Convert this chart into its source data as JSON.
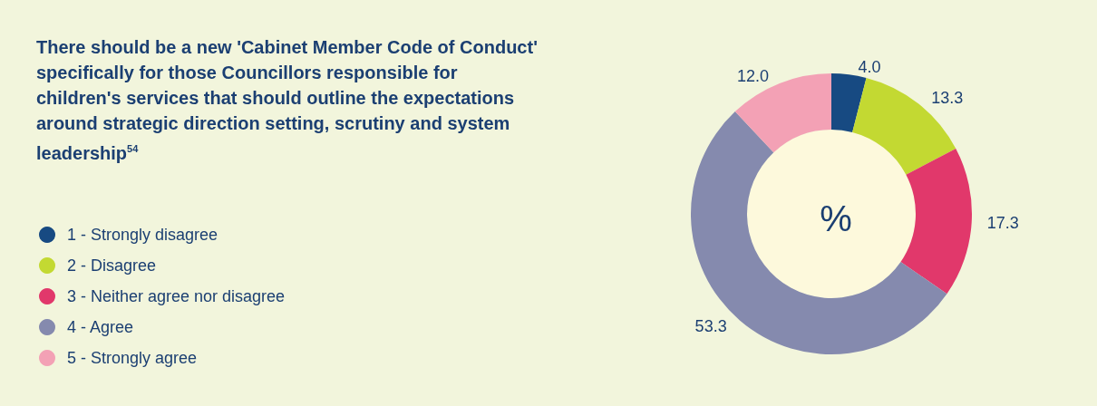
{
  "chart_data": {
    "type": "donut",
    "title": "There should be a new 'Cabinet Member Code of Conduct' specifically for those Councillors responsible for children's services that should outline the expectations around strategic direction setting, scrutiny and system leadership$^{54}$",
    "categories": [
      "1 - Strongly disagree",
      "2 - Disagree",
      "3 - Neither agree nor disagree",
      "4 - Agree",
      "5 - Strongly agree"
    ],
    "values": [
      4.0,
      13.3,
      17.3,
      53.3,
      12.0
    ],
    "value_labels": [
      "4.0",
      "13.3",
      "17.3",
      "53.3",
      "12.0"
    ],
    "colors": [
      "#174a82",
      "#c3d932",
      "#e1386b",
      "#858aae",
      "#f3a1b5"
    ],
    "annotations": [
      "%"
    ],
    "legend": "left"
  }
}
